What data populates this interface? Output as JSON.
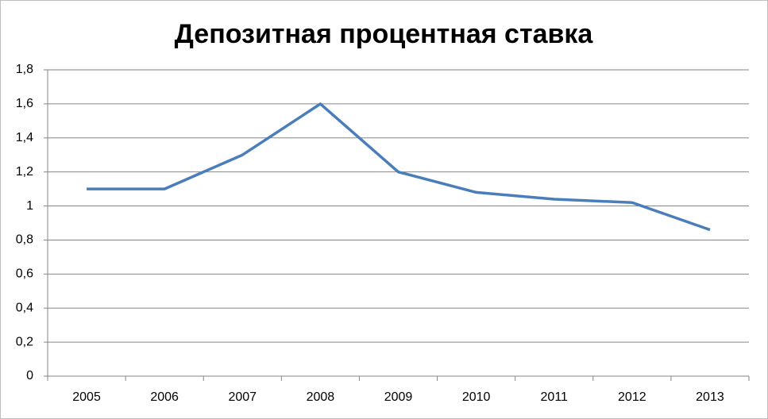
{
  "chart_data": {
    "type": "line",
    "title": "Депозитная процентная ставка",
    "categories": [
      "2005",
      "2006",
      "2007",
      "2008",
      "2009",
      "2010",
      "2011",
      "2012",
      "2013"
    ],
    "series": [
      {
        "name": "Депозитная процентная ставка",
        "color": "#4a7ebb",
        "values": [
          1.1,
          1.1,
          1.3,
          1.6,
          1.2,
          1.08,
          1.04,
          1.02,
          0.86
        ]
      }
    ],
    "ylim": [
      0,
      1.8
    ],
    "yticks": [
      0,
      {
        "value": 0.2,
        "label": "0,2"
      },
      {
        "value": 0.4,
        "label": "0,4"
      },
      {
        "value": 0.6,
        "label": "0,6"
      },
      {
        "value": 0.8,
        "label": "0,8"
      },
      1,
      {
        "value": 1.2,
        "label": "1,2"
      },
      {
        "value": 1.4,
        "label": "1,4"
      },
      {
        "value": 1.6,
        "label": "1,6"
      },
      {
        "value": 1.8,
        "label": "1,8"
      }
    ],
    "grid": true
  }
}
